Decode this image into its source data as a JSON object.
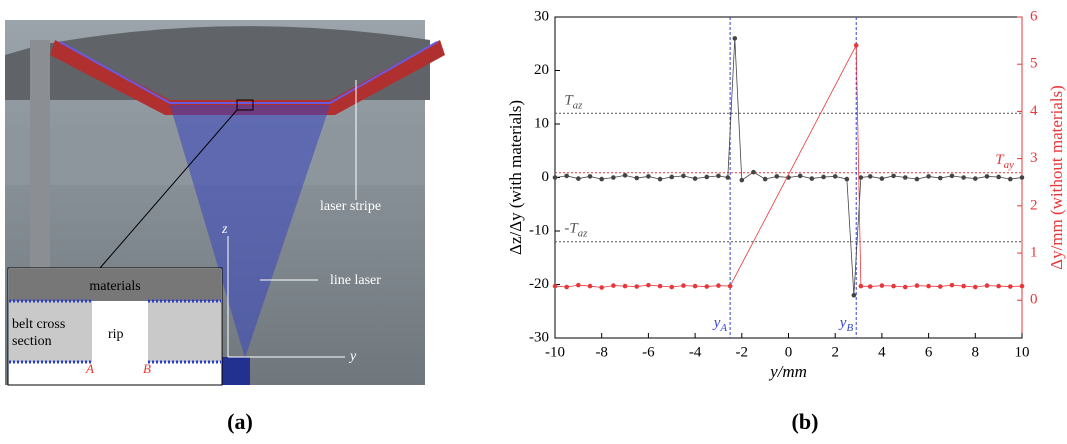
{
  "panel_a": {
    "laser_stripe": "laser stripe",
    "line_laser": "line laser",
    "z": "z",
    "y": "y",
    "materials": "materials",
    "belt_cross": "belt cross",
    "section": "section",
    "rip": "rip",
    "A": "A",
    "B": "B",
    "caption": "(a)"
  },
  "chart_data": {
    "type": "line",
    "caption": "(b)",
    "x_label": "y/mm",
    "y_label": "Δz/Δy (with materials)",
    "y2_label": "Δy/mm (without materials)",
    "xlim": [
      -10,
      10
    ],
    "xticks": [
      -10,
      -8,
      -6,
      -4,
      -2,
      0,
      2,
      4,
      6,
      8,
      10
    ],
    "ylim": [
      -30,
      30
    ],
    "yticks": [
      -30,
      -20,
      -10,
      0,
      10,
      20,
      30
    ],
    "y2lim": [
      -0.8,
      6
    ],
    "y2ticks": [
      0,
      1,
      2,
      3,
      4,
      5,
      6
    ],
    "series": [
      {
        "color": "#444444",
        "axis": "y",
        "x": [
          -10,
          -9.5,
          -9,
          -8.5,
          -8,
          -7.5,
          -7,
          -6.5,
          -6,
          -5.5,
          -5,
          -4.5,
          -4,
          -3.5,
          -3,
          -2.6,
          -2.3,
          -2,
          -1.5,
          -1,
          -0.5,
          0,
          0.5,
          1,
          1.5,
          2,
          2.5,
          2.8,
          3.1,
          3.5,
          4,
          4.5,
          5,
          5.5,
          6,
          6.5,
          7,
          7.5,
          8,
          8.5,
          9,
          9.5,
          10
        ],
        "values": [
          0,
          0.3,
          -0.2,
          0.2,
          -0.3,
          0,
          0.4,
          -0.1,
          0.2,
          -0.3,
          0.1,
          0.3,
          -0.2,
          0.1,
          0.3,
          0,
          26,
          -0.5,
          1,
          -0.3,
          0.2,
          0,
          0.3,
          -0.2,
          0.1,
          0.2,
          -0.3,
          -22,
          0,
          0.2,
          -0.2,
          0.3,
          0,
          -0.3,
          0.2,
          -0.1,
          0.3,
          0,
          -0.2,
          0.2,
          0.1,
          -0.3,
          0
        ]
      },
      {
        "color": "#e8373b",
        "axis": "y2",
        "x": [
          -10,
          -9.5,
          -9,
          -8.5,
          -8,
          -7.5,
          -7,
          -6.5,
          -6,
          -5.5,
          -5,
          -4.5,
          -4,
          -3.5,
          -3,
          -2.5,
          2.9,
          3.1,
          3.5,
          4,
          4.5,
          5,
          5.5,
          6,
          6.5,
          7,
          7.5,
          8,
          8.5,
          9,
          9.5,
          10
        ],
        "values": [
          0.3,
          0.28,
          0.32,
          0.3,
          0.27,
          0.31,
          0.3,
          0.29,
          0.32,
          0.3,
          0.28,
          0.31,
          0.3,
          0.29,
          0.31,
          0.3,
          5.4,
          0.3,
          0.29,
          0.31,
          0.3,
          0.28,
          0.31,
          0.3,
          0.29,
          0.32,
          0.3,
          0.28,
          0.31,
          0.3,
          0.29,
          0.3
        ]
      }
    ],
    "thresholds": [
      {
        "text": "T",
        "sub": "az",
        "value": 12,
        "axis": "y",
        "color": "#555555"
      },
      {
        "text": "-T",
        "sub": "az",
        "value": -12,
        "axis": "y",
        "color": "#555555"
      },
      {
        "text": "T",
        "sub": "ay",
        "value": 2.7,
        "axis": "y2",
        "color": "#e8373b"
      }
    ],
    "markers": [
      {
        "text": "y",
        "sub": "A",
        "x": -2.5,
        "color": "#3344cc"
      },
      {
        "text": "y",
        "sub": "B",
        "x": 2.9,
        "color": "#3344cc"
      }
    ]
  }
}
